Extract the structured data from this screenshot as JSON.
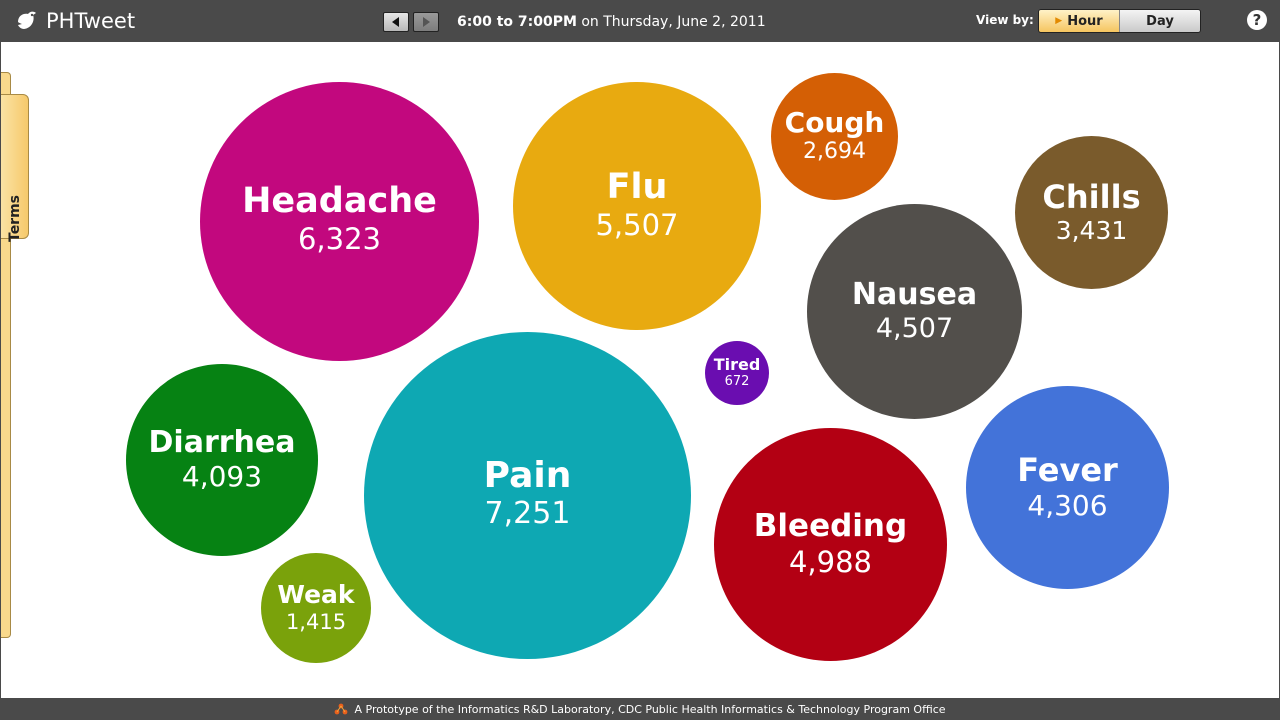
{
  "app": {
    "title": "PHTweet"
  },
  "nav": {
    "time_bold": "6:00 to 7:00PM",
    "time_rest": " on Thursday, June 2, 2011"
  },
  "view_by": {
    "label": "View by:",
    "options": [
      "Hour",
      "Day"
    ],
    "selected": "Hour"
  },
  "help": {
    "label": "?"
  },
  "terms_tab": {
    "label": "Terms"
  },
  "bubbles": [
    {
      "term": "Headache",
      "count": "6,323",
      "color": "#c2087e"
    },
    {
      "term": "Flu",
      "count": "5,507",
      "color": "#e8aa10"
    },
    {
      "term": "Cough",
      "count": "2,694",
      "color": "#d45f05"
    },
    {
      "term": "Chills",
      "count": "3,431",
      "color": "#7a5b2c"
    },
    {
      "term": "Nausea",
      "count": "4,507",
      "color": "#524f4b"
    },
    {
      "term": "Tired",
      "count": "672",
      "color": "#6a0db0"
    },
    {
      "term": "Diarrhea",
      "count": "4,093",
      "color": "#068213"
    },
    {
      "term": "Pain",
      "count": "7,251",
      "color": "#0ea8b3"
    },
    {
      "term": "Fever",
      "count": "4,306",
      "color": "#4373d9"
    },
    {
      "term": "Bleeding",
      "count": "4,988",
      "color": "#b30013"
    },
    {
      "term": "Weak",
      "count": "1,415",
      "color": "#7aa20b"
    }
  ],
  "footer": {
    "text": "A Prototype of the Informatics R&D Laboratory, CDC Public Health Informatics & Technology Program Office"
  }
}
